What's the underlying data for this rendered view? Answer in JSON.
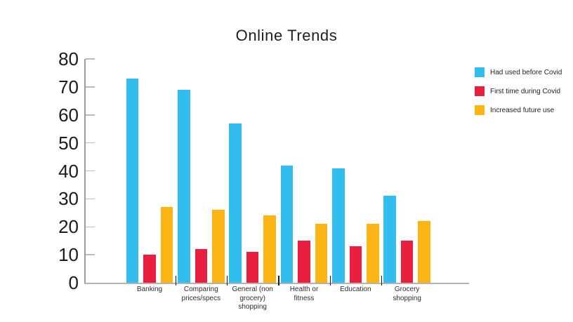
{
  "chart_data": {
    "type": "bar",
    "title": "Online Trends",
    "categories": [
      "Banking",
      "Comparing prices/specs",
      "General (non grocery) shopping",
      "Health or fitness",
      "Education",
      "Grocery shopping"
    ],
    "category_label_lines": [
      [
        "Banking"
      ],
      [
        "Comparing",
        "prices/specs"
      ],
      [
        "General (non",
        "grocery)",
        "shopping"
      ],
      [
        "Health or",
        "fitness"
      ],
      [
        "Education"
      ],
      [
        "Grocery",
        "shopping"
      ]
    ],
    "series": [
      {
        "name": "Had used before Covid",
        "color": "#32BDEF",
        "values": [
          73,
          69,
          57,
          42,
          41,
          31
        ]
      },
      {
        "name": "First time during Covid",
        "color": "#EA1E3F",
        "values": [
          10,
          12,
          11,
          15,
          13,
          15
        ]
      },
      {
        "name": "Increased future use",
        "color": "#FDB515",
        "values": [
          27,
          26,
          24,
          21,
          21,
          22
        ]
      }
    ],
    "xlabel": "",
    "ylabel": "",
    "ylim": [
      0,
      80
    ],
    "yticks": [
      0,
      10,
      20,
      30,
      40,
      50,
      60,
      70,
      80
    ],
    "grid": false,
    "legend_position": "right",
    "axis_color": "#9b9b9b",
    "baseline_color": "#b3b3b3",
    "ytick_color": "#bcbcbc",
    "separator_color": "#1a1a1a"
  }
}
